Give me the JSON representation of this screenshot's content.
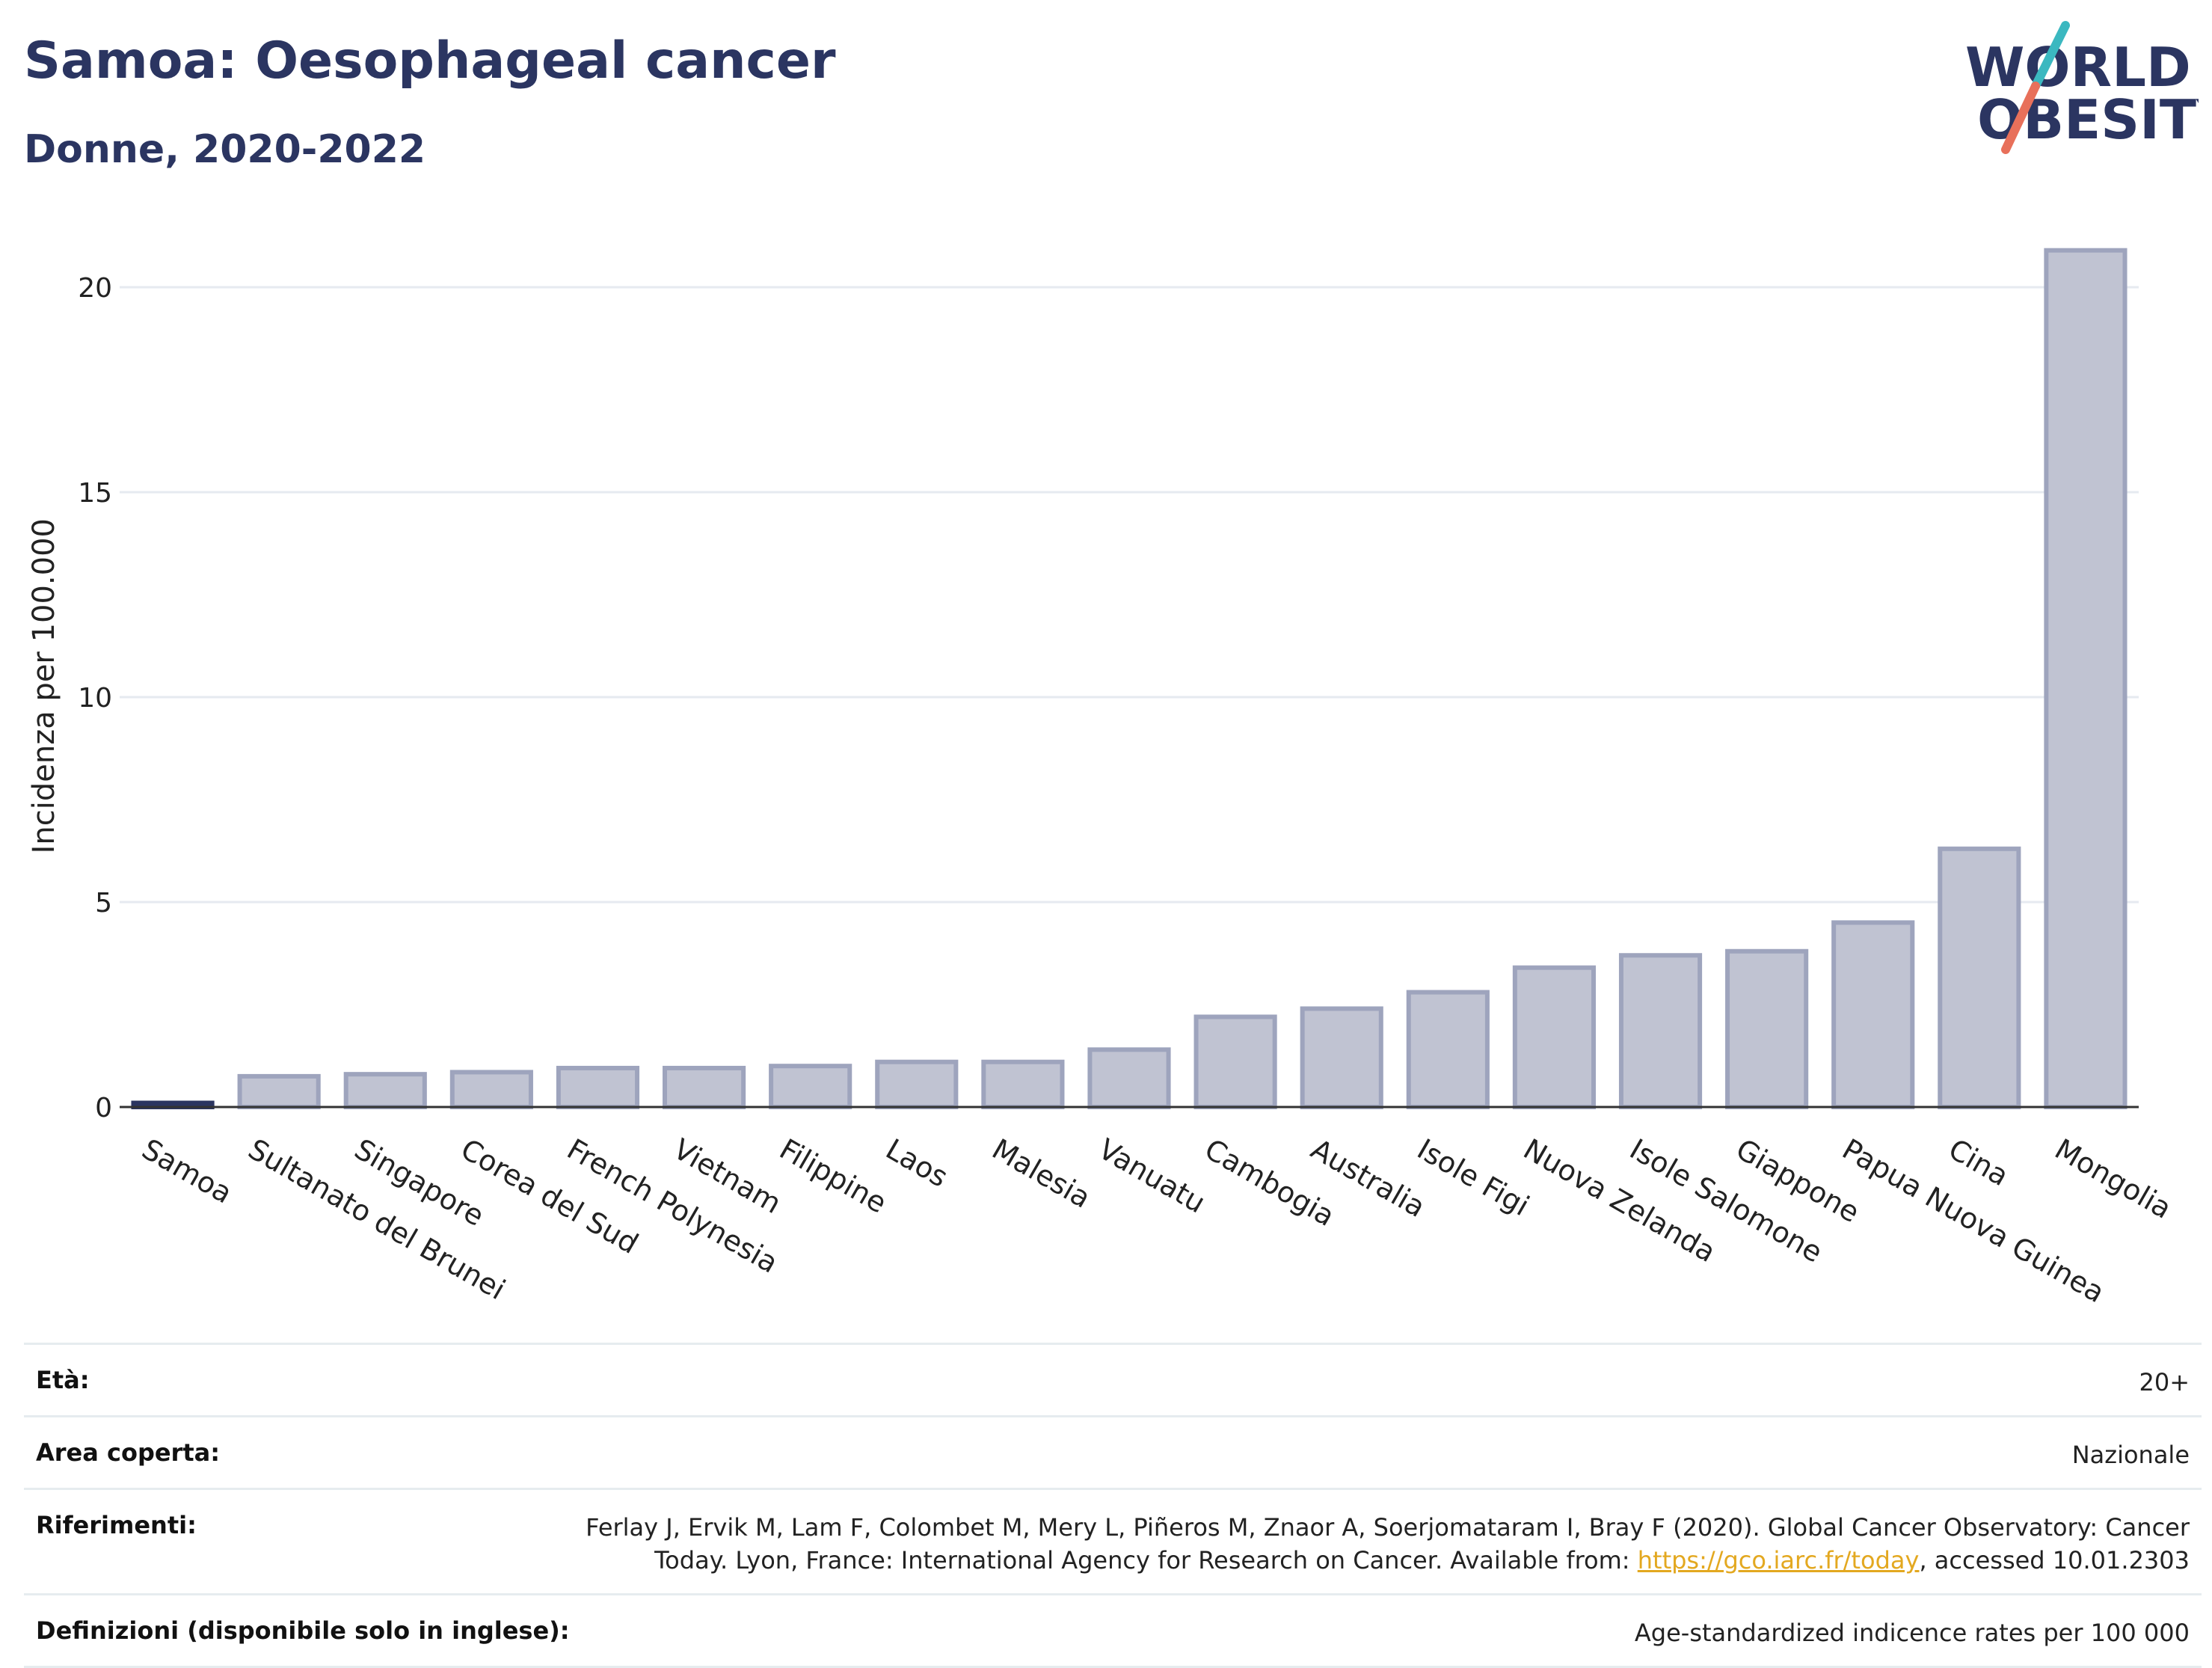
{
  "header": {
    "title": "Samoa: Oesophageal cancer",
    "subtitle": "Donne, 2020-2022",
    "logo_line1": "WORLD",
    "logo_line2": "OBESITY"
  },
  "colors": {
    "highlight": "#2b3561",
    "bar_fill": "#c0c3d2",
    "bar_stroke": "#9ea4bd",
    "title": "#2b3561",
    "grid": "#e6eaf0",
    "logo_teal": "#3bb8c0",
    "logo_coral": "#e8705a",
    "link": "#e3a820"
  },
  "chart_data": {
    "type": "bar",
    "ylabel": "Incidenza per 100.000",
    "ylim": [
      0,
      22
    ],
    "yticks": [
      0,
      5,
      10,
      15,
      20
    ],
    "grid": true,
    "highlight_category": "Samoa",
    "categories": [
      "Samoa",
      "Sultanato del Brunei",
      "Singapore",
      "Corea del Sud",
      "French Polynesia",
      "Vietnam",
      "Filippine",
      "Laos",
      "Malesia",
      "Vanuatu",
      "Cambogia",
      "Australia",
      "Isole Figi",
      "Nuova Zelanda",
      "Isole Salomone",
      "Giappone",
      "Papua Nuova Guinea",
      "Cina",
      "Mongolia"
    ],
    "values": [
      0.1,
      0.75,
      0.8,
      0.85,
      0.95,
      0.95,
      1.0,
      1.1,
      1.1,
      1.4,
      2.2,
      2.4,
      2.8,
      3.4,
      3.7,
      3.8,
      4.5,
      6.3,
      20.9
    ]
  },
  "meta": {
    "age_label": "Età:",
    "age_value": "20+",
    "area_label": "Area coperta:",
    "area_value": "Nazionale",
    "refs_label": "Riferimenti:",
    "refs_line1": "Ferlay J, Ervik M, Lam F, Colombet M, Mery L, Piñeros M, Znaor A, Soerjomataram I, Bray F (2020). Global Cancer Observatory: Cancer",
    "refs_line2_pre": "Today. Lyon, France: International Agency for Research on Cancer. Available from: ",
    "refs_link": "https://gco.iarc.fr/today",
    "refs_line2_post": ", accessed 10.01.2303",
    "defs_label": "Definizioni (disponibile solo in inglese):",
    "defs_value": "Age-standardized indicence rates per 100 000"
  }
}
